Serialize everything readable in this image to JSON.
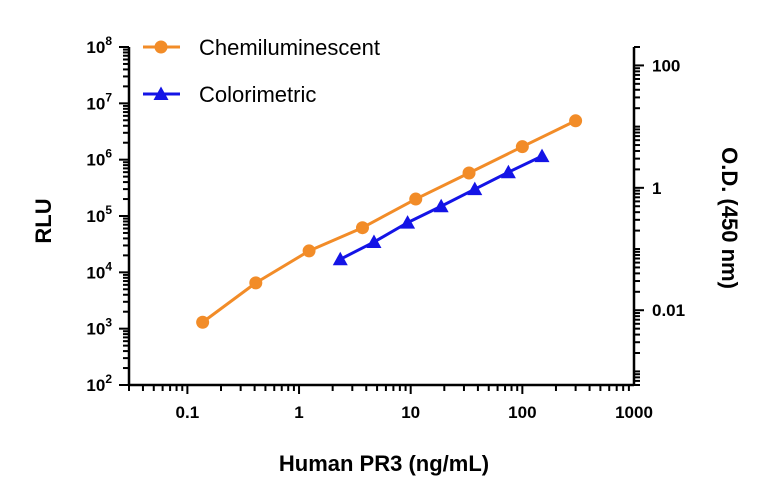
{
  "chart_data": {
    "type": "line",
    "xlabel": "Human PR3 (ng/mL)",
    "ylabel": "RLU",
    "y2label": "O.D. (450 nm)",
    "x_scale": "log",
    "y_scale": "log",
    "y2_scale": "log",
    "xlim": [
      0.03,
      1000
    ],
    "ylim": [
      100,
      100000000
    ],
    "y2lim": [
      0.0006,
      200
    ],
    "x_ticks": [
      {
        "value": 0.1,
        "label": "0.1"
      },
      {
        "value": 1,
        "label": "1"
      },
      {
        "value": 10,
        "label": "10"
      },
      {
        "value": 100,
        "label": "100"
      },
      {
        "value": 1000,
        "label": "1000"
      }
    ],
    "y_ticks": [
      {
        "value": 100,
        "base": "10",
        "exp": "2"
      },
      {
        "value": 1000,
        "base": "10",
        "exp": "3"
      },
      {
        "value": 10000,
        "base": "10",
        "exp": "4"
      },
      {
        "value": 100000,
        "base": "10",
        "exp": "5"
      },
      {
        "value": 1000000,
        "base": "10",
        "exp": "6"
      },
      {
        "value": 10000000,
        "base": "10",
        "exp": "7"
      },
      {
        "value": 100000000,
        "base": "10",
        "exp": "8"
      }
    ],
    "y2_ticks": [
      {
        "value": 100,
        "label": "100"
      },
      {
        "value": 1,
        "label": "1"
      },
      {
        "value": 0.01,
        "label": "0.01"
      }
    ],
    "legend_position": "top-left",
    "grid": false,
    "series": [
      {
        "name": "Chemiluminescent",
        "axis": "left",
        "marker": "circle",
        "color": "#F28C28",
        "x": [
          0.137,
          0.41,
          1.23,
          3.7,
          11.1,
          33.3,
          100,
          300
        ],
        "y": [
          1300,
          6500,
          24000,
          62000,
          200000,
          580000,
          1700000,
          4900000
        ]
      },
      {
        "name": "Colorimetric",
        "axis": "right",
        "marker": "triangle",
        "color": "#1414E6",
        "x": [
          2.34,
          4.69,
          9.38,
          18.75,
          37.5,
          75,
          150
        ],
        "y": [
          0.068,
          0.13,
          0.27,
          0.5,
          0.95,
          1.8,
          3.3
        ]
      }
    ]
  }
}
